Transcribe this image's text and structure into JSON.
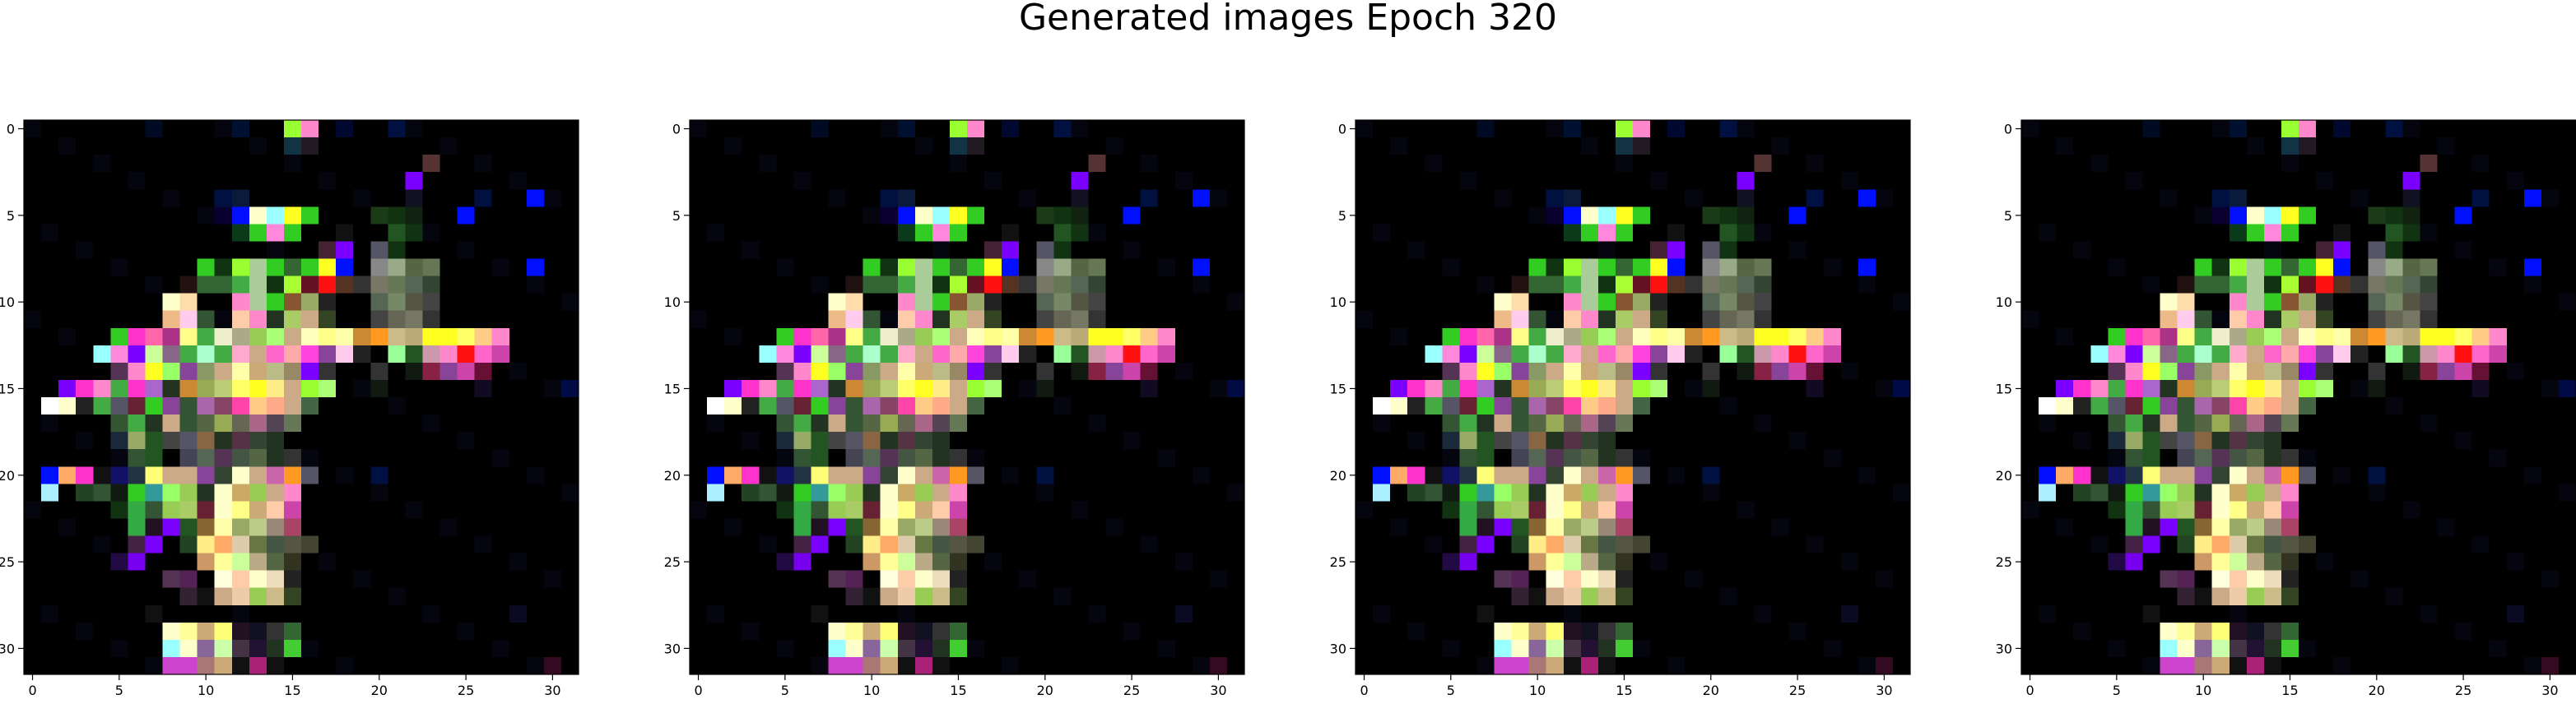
{
  "figure": {
    "title": "Generated images Epoch 320"
  },
  "image_grid": {
    "size": 32,
    "x_ticks": [
      0,
      5,
      10,
      15,
      20,
      25,
      30
    ],
    "y_ticks": [
      0,
      5,
      10,
      15,
      20,
      25,
      30
    ],
    "panel_count": 4
  },
  "panels": [
    {
      "name": "generated-image-1"
    },
    {
      "name": "generated-image-2"
    },
    {
      "name": "generated-image-3"
    },
    {
      "name": "generated-image-4"
    }
  ],
  "palette": {
    "background": "#000000",
    "blue": "#0010ff",
    "violet": "#7a00ff",
    "magenta": "#ff33cc",
    "pink": "#ff88cc",
    "yellow": "#ffff22",
    "cream": "#ffffcc",
    "green": "#33cc22",
    "lime": "#99ff33",
    "cyan": "#99ffff",
    "red": "#ff1111",
    "orange": "#ff9922",
    "olive": "#667744",
    "dark-green": "#1a3a18"
  }
}
